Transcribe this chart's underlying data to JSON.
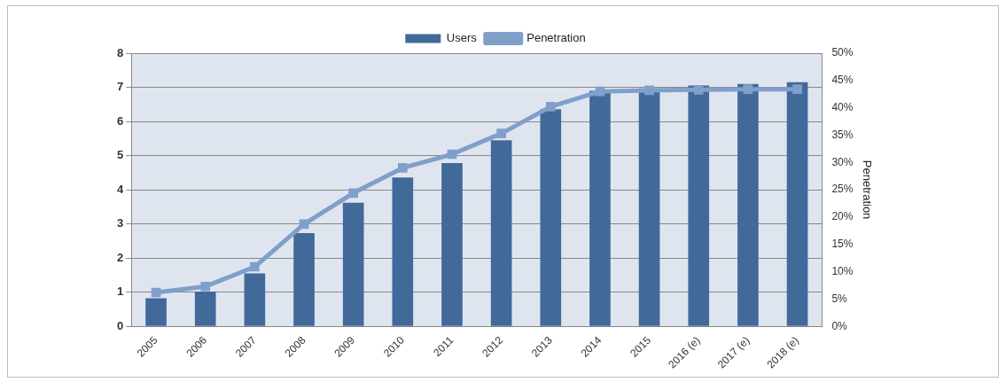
{
  "chart_data": {
    "type": "bar",
    "categories": [
      "2005",
      "2006",
      "2007",
      "2008",
      "2009",
      "2010",
      "2011",
      "2012",
      "2013",
      "2014",
      "2015",
      "2016 (e)",
      "2017 (e)",
      "2018 (e)"
    ],
    "series": [
      {
        "name": "Users",
        "color": "#41699a",
        "values": [
          0.82,
          1.02,
          1.55,
          2.73,
          3.62,
          4.36,
          4.78,
          5.45,
          6.36,
          6.9,
          6.97,
          7.05,
          7.1,
          7.15
        ]
      },
      {
        "name": "Penetration",
        "type": "line",
        "axis": "y2",
        "color": "#809fcb",
        "values": [
          6.2,
          7.3,
          10.9,
          18.7,
          24.4,
          29,
          31.5,
          35.3,
          40.2,
          43,
          43.2,
          43.3,
          43.4,
          43.4
        ]
      }
    ],
    "ylim": [
      0,
      8
    ],
    "yticks": [
      0,
      1,
      2,
      3,
      4,
      5,
      6,
      7,
      8
    ],
    "y2lim": [
      0,
      50
    ],
    "y2ticks": [
      {
        "value": 0,
        "label": "0%"
      },
      {
        "value": 5,
        "label": "5%"
      },
      {
        "value": 10,
        "label": "10%"
      },
      {
        "value": 15,
        "label": "15%"
      },
      {
        "value": 20,
        "label": "20%"
      },
      {
        "value": 25,
        "label": "25%"
      },
      {
        "value": 30,
        "label": "30%"
      },
      {
        "value": 35,
        "label": "35%"
      },
      {
        "value": 40,
        "label": "40%"
      },
      {
        "value": 45,
        "label": "45%"
      },
      {
        "value": 50,
        "label": "50%"
      }
    ],
    "y2label": "Penetration",
    "grid": "y",
    "legend": "top",
    "marker": "square",
    "line_style": "solid"
  }
}
